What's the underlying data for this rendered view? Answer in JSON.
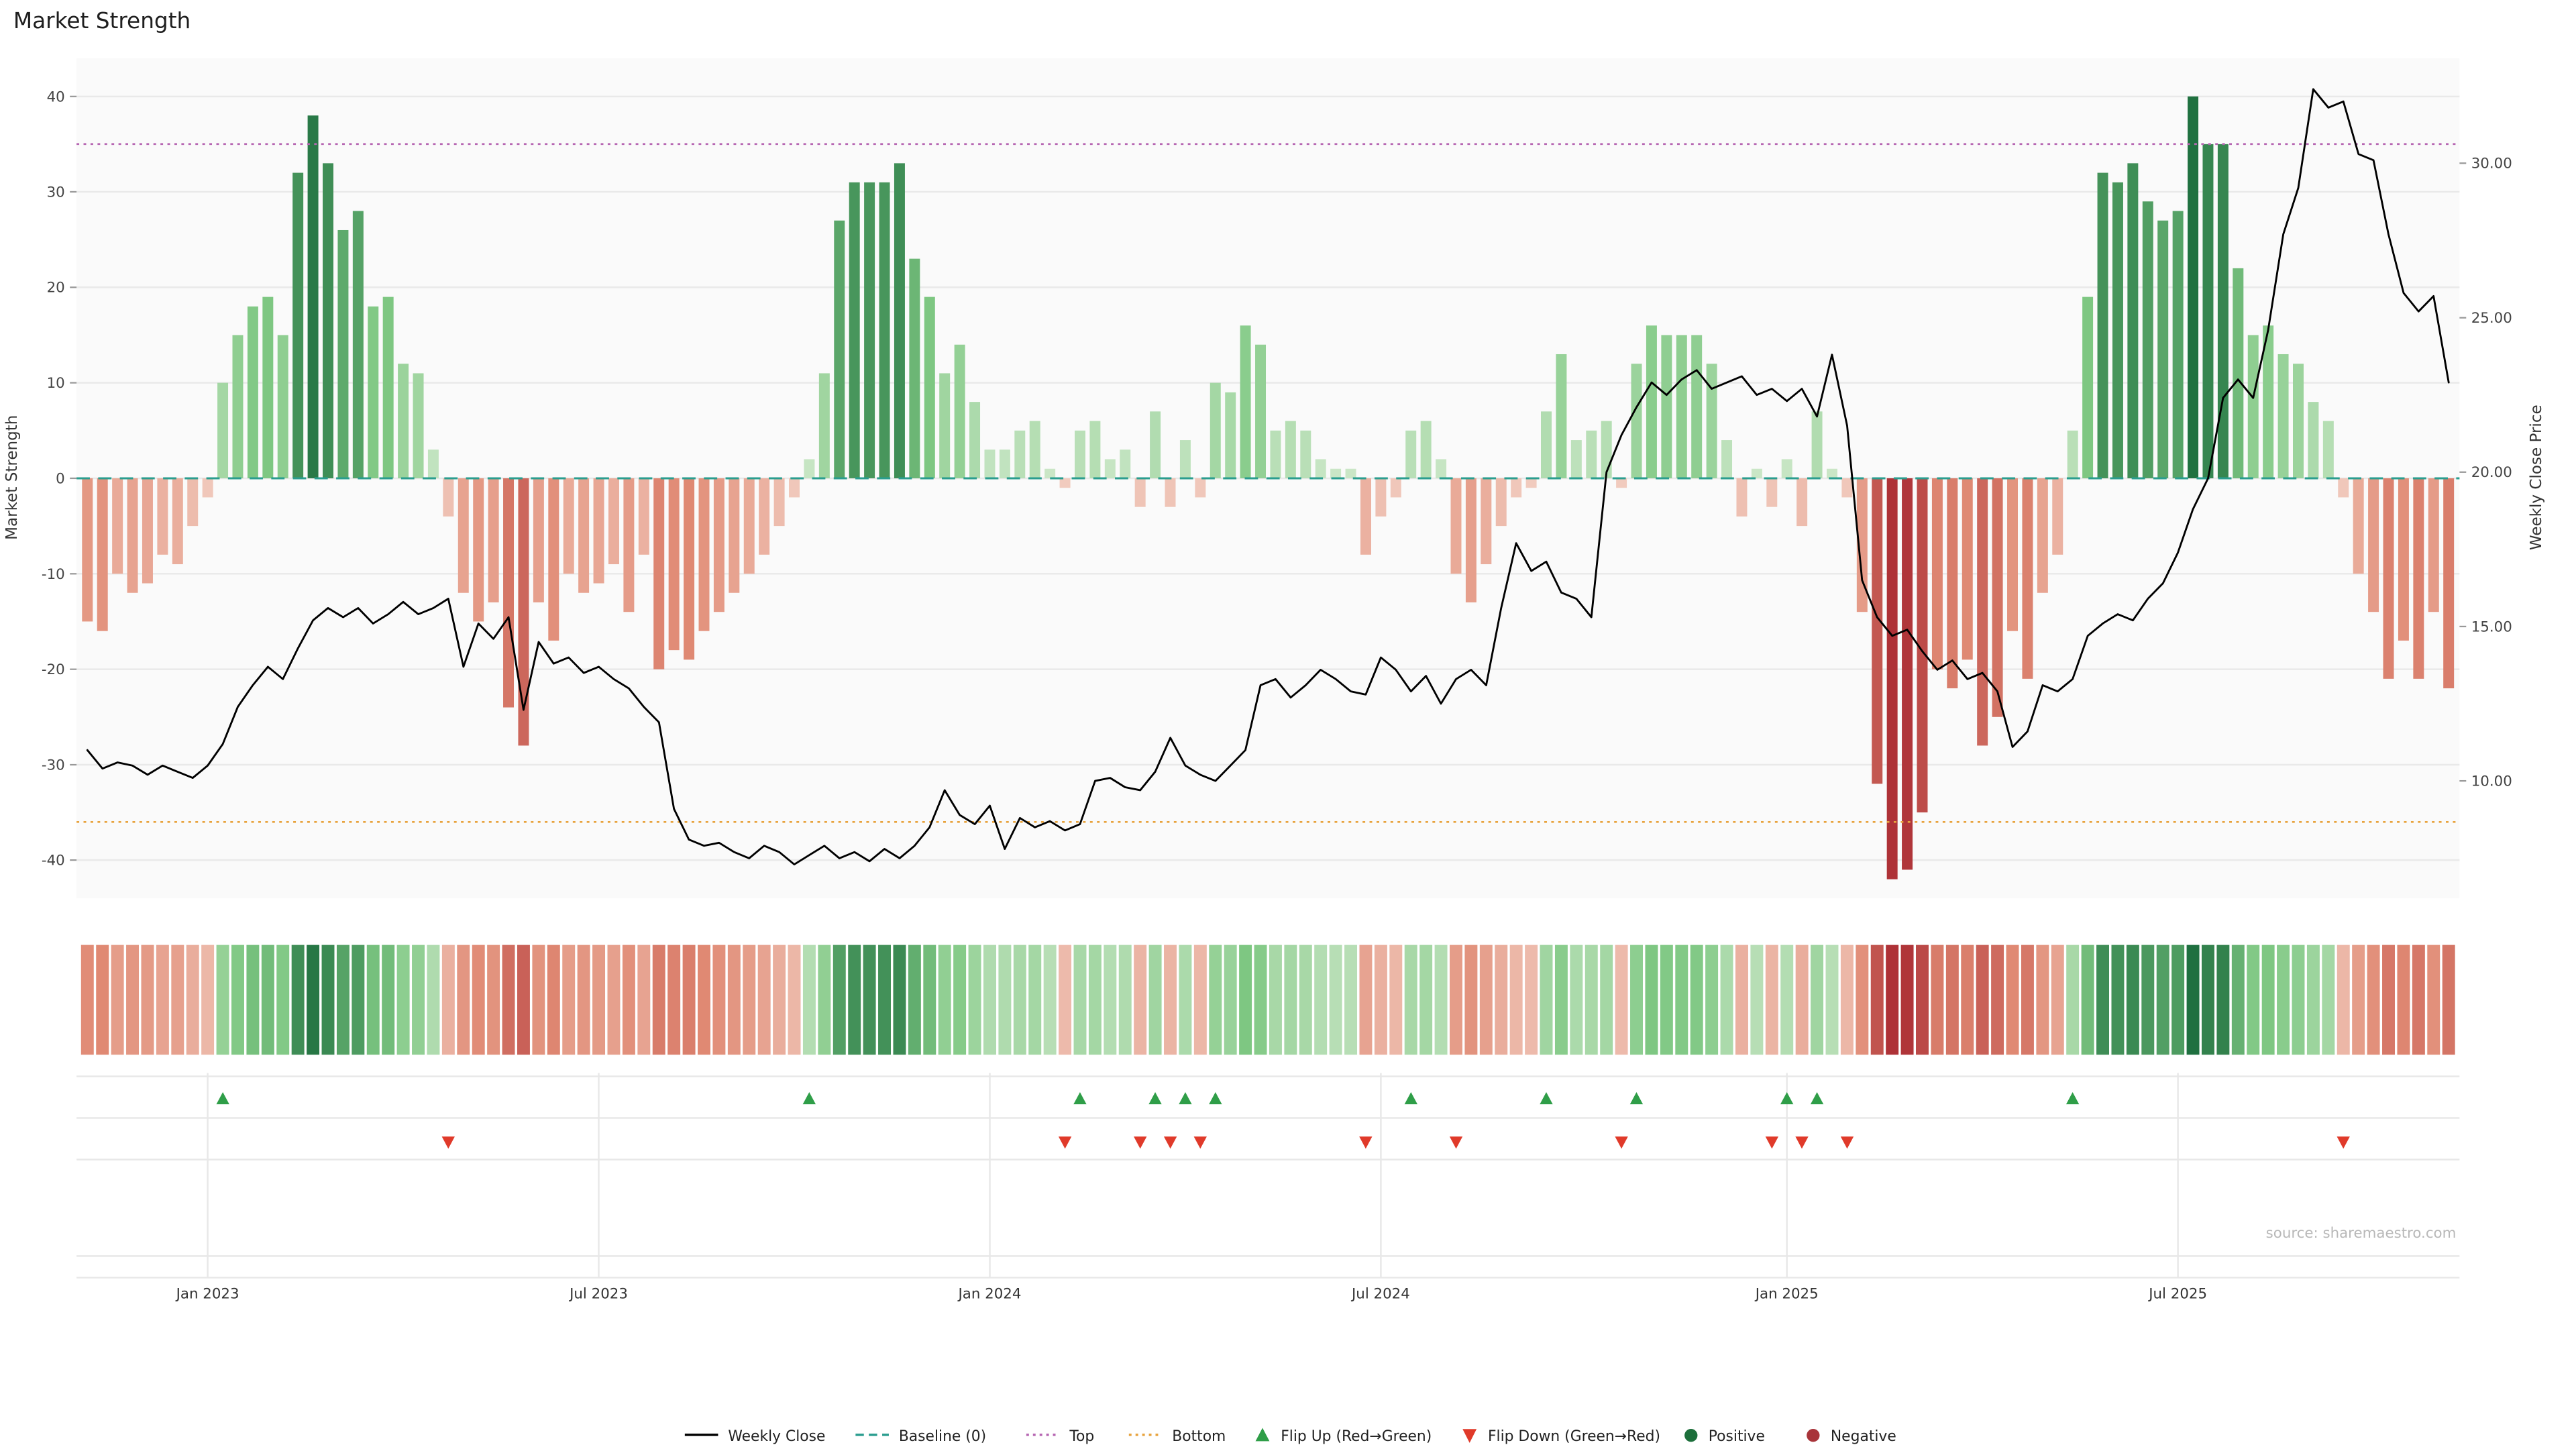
{
  "title": "Market Strength",
  "source": "source: sharemaestro.com",
  "chart_data": {
    "type": "bar+line combo with heatmap strip and flip markers",
    "x_unit": "week",
    "n_weeks": 158,
    "x_ticks": [
      {
        "week": 8,
        "label": "Jan 2023"
      },
      {
        "week": 34,
        "label": "Jul 2023"
      },
      {
        "week": 60,
        "label": "Jan 2024"
      },
      {
        "week": 86,
        "label": "Jul 2024"
      },
      {
        "week": 113,
        "label": "Jan 2025"
      },
      {
        "week": 139,
        "label": "Jul 2025"
      }
    ],
    "strength_axis": {
      "label": "Market Strength",
      "ticks": [
        40,
        30,
        20,
        10,
        0,
        -10,
        -20,
        -30,
        -40
      ],
      "ylim": [
        -44,
        44
      ]
    },
    "price_axis": {
      "label": "Weekly Close Price",
      "ticks": [
        "30.00",
        "25.00",
        "20.00",
        "15.00",
        "10.00"
      ],
      "tick_values": [
        30,
        25,
        20,
        15,
        10
      ],
      "ylim": [
        6.2,
        33.4
      ]
    },
    "reference_lines": {
      "baseline": 0,
      "top": 35,
      "bottom": -36
    },
    "strength_bars": [
      -15,
      -16,
      -10,
      -12,
      -11,
      -8,
      -9,
      -5,
      -2,
      10,
      15,
      18,
      19,
      15,
      32,
      38,
      33,
      26,
      28,
      18,
      19,
      12,
      11,
      3,
      -4,
      -12,
      -15,
      -13,
      -24,
      -28,
      -13,
      -17,
      -10,
      -12,
      -11,
      -9,
      -14,
      -8,
      -20,
      -18,
      -19,
      -16,
      -14,
      -12,
      -10,
      -8,
      -5,
      -2,
      2,
      11,
      27,
      31,
      31,
      31,
      33,
      23,
      19,
      11,
      14,
      8,
      3,
      3,
      5,
      6,
      1,
      -1,
      5,
      6,
      2,
      3,
      -3,
      7,
      -3,
      4,
      -2,
      10,
      9,
      16,
      14,
      5,
      6,
      5,
      2,
      1,
      1,
      -8,
      -4,
      -2,
      5,
      6,
      2,
      -10,
      -13,
      -9,
      -5,
      -2,
      -1,
      7,
      13,
      4,
      5,
      6,
      -1,
      12,
      16,
      15,
      15,
      15,
      12,
      4,
      -4,
      1,
      -3,
      2,
      -5,
      7,
      1,
      -2,
      -14,
      -32,
      -42,
      -41,
      -35,
      -20,
      -22,
      -19,
      -28,
      -25,
      -16,
      -21,
      -12,
      -8,
      5,
      19,
      32,
      31,
      33,
      29,
      27,
      28,
      40,
      35,
      35,
      22,
      15,
      16,
      13,
      12,
      8,
      6,
      -2,
      -10,
      -14,
      -21,
      -17,
      -21,
      -14,
      -22
    ],
    "weekly_close": [
      11.0,
      10.4,
      10.6,
      10.5,
      10.2,
      10.5,
      10.3,
      10.1,
      10.5,
      11.2,
      12.4,
      13.1,
      13.7,
      13.3,
      14.3,
      15.2,
      15.6,
      15.3,
      15.6,
      15.1,
      15.4,
      15.8,
      15.4,
      15.6,
      15.9,
      13.7,
      15.1,
      14.6,
      15.3,
      12.3,
      14.5,
      13.8,
      14.0,
      13.5,
      13.7,
      13.3,
      13.0,
      12.4,
      11.9,
      9.1,
      8.1,
      7.9,
      8.0,
      7.7,
      7.5,
      7.9,
      7.7,
      7.3,
      7.6,
      7.9,
      7.5,
      7.7,
      7.4,
      7.8,
      7.5,
      7.9,
      8.5,
      9.7,
      8.9,
      8.6,
      9.2,
      7.8,
      8.8,
      8.5,
      8.7,
      8.4,
      8.6,
      10.0,
      10.1,
      9.8,
      9.7,
      10.3,
      11.4,
      10.5,
      10.2,
      10.0,
      10.5,
      11.0,
      13.1,
      13.3,
      12.7,
      13.1,
      13.6,
      13.3,
      12.9,
      12.8,
      14.0,
      13.6,
      12.9,
      13.4,
      12.5,
      13.3,
      13.6,
      13.1,
      15.6,
      17.7,
      16.8,
      17.1,
      16.1,
      15.9,
      15.3,
      20.0,
      21.2,
      22.1,
      22.9,
      22.5,
      23.0,
      23.3,
      22.7,
      22.9,
      23.1,
      22.5,
      22.7,
      22.3,
      22.7,
      21.8,
      23.8,
      21.5,
      16.5,
      15.3,
      14.7,
      14.9,
      14.2,
      13.6,
      13.9,
      13.3,
      13.5,
      12.9,
      11.1,
      11.6,
      13.1,
      12.9,
      13.3,
      14.7,
      15.1,
      15.4,
      15.2,
      15.9,
      16.4,
      17.4,
      18.8,
      19.8,
      22.4,
      23.0,
      22.4,
      24.6,
      27.7,
      29.2,
      32.4,
      31.8,
      32.0,
      30.3,
      30.1,
      27.7,
      25.8,
      25.2,
      25.7,
      22.9
    ],
    "flip_up_weeks": [
      9,
      48,
      66,
      71,
      73,
      75,
      88,
      97,
      103,
      113,
      115,
      132
    ],
    "flip_down_weeks": [
      24,
      65,
      70,
      72,
      74,
      85,
      91,
      102,
      112,
      114,
      117,
      150
    ]
  },
  "legend": [
    {
      "label": "Weekly Close",
      "glyph": "line",
      "color": "#000000"
    },
    {
      "label": "Baseline (0)",
      "glyph": "dash",
      "color": "#2a9d8f"
    },
    {
      "label": "Top",
      "glyph": "dots",
      "color": "#b666b2"
    },
    {
      "label": "Bottom",
      "glyph": "dots",
      "color": "#e8a33d"
    },
    {
      "label": "Flip Up (Red→Green)",
      "glyph": "triangle-up",
      "color": "#2f9e48"
    },
    {
      "label": "Flip Down (Green→Red)",
      "glyph": "triangle-down",
      "color": "#e03a2a"
    },
    {
      "label": "Positive",
      "glyph": "circle",
      "color": "#1d6f3b"
    },
    {
      "label": "Negative",
      "glyph": "circle",
      "color": "#a8343a"
    }
  ],
  "colors": {
    "pos_light": "#e2f0dc",
    "pos_mid": "#7fc883",
    "pos_dark": "#17693a",
    "neg_light": "#f7e0d6",
    "neg_mid": "#e08a74",
    "neg_dark": "#ae3237",
    "line": "#000000",
    "baseline": "#2a9d8f",
    "top": "#b666b2",
    "bottom": "#e8a33d",
    "flip_up": "#2f9e48",
    "flip_down": "#e03a2a",
    "plot_bg": "#fafafa",
    "grid": "#e9e9e9",
    "panel_grid": "#e8e8e8"
  }
}
